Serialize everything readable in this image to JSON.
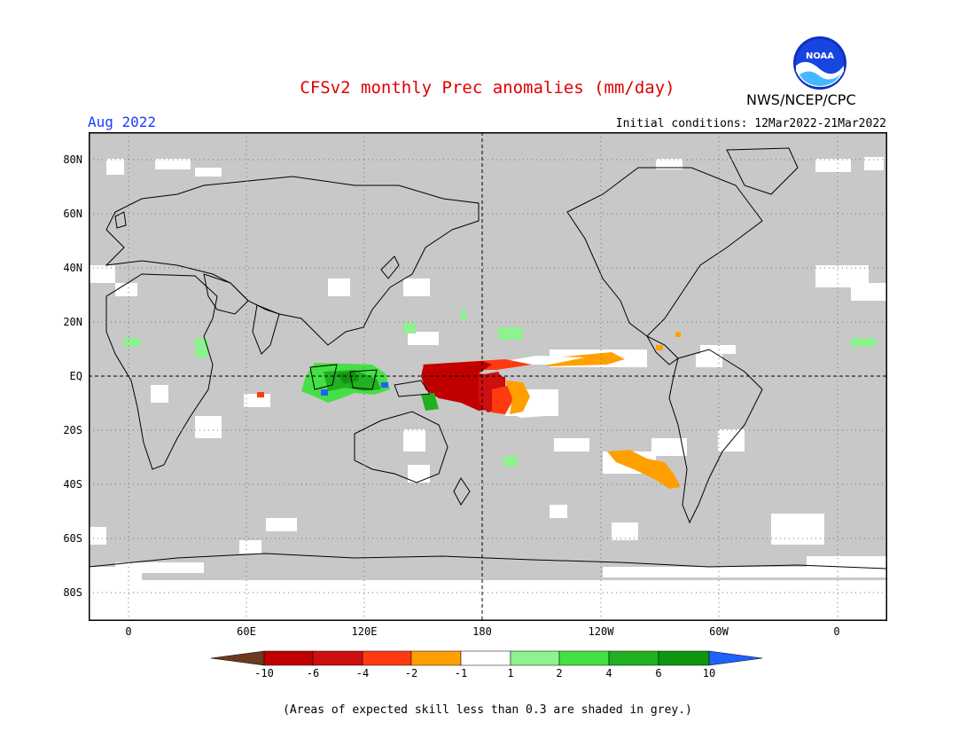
{
  "header": {
    "title": "CFSv2 monthly Prec anomalies (mm/day)",
    "month": "Aug 2022",
    "initial_conditions": "Initial conditions: 12Mar2022-21Mar2022",
    "agency": "NWS/NCEP/CPC",
    "logo_text": "NOAA"
  },
  "map": {
    "lat_labels": [
      "80N",
      "60N",
      "40N",
      "20N",
      "EQ",
      "20S",
      "40S",
      "60S",
      "80S"
    ],
    "lon_labels": [
      "0",
      "60E",
      "120E",
      "180",
      "120W",
      "60W",
      "0"
    ],
    "projection": "cylindrical equidistant",
    "background_color": "#c8c8c8",
    "grid": "dotted"
  },
  "colorbar": {
    "tick_labels": [
      "-10",
      "-6",
      "-4",
      "-2",
      "-1",
      "1",
      "2",
      "4",
      "6",
      "10"
    ],
    "colors": [
      "#6b3a1e",
      "#c00000",
      "#cc1010",
      "#ff3a10",
      "#ffa000",
      "#ffffff",
      "#8ef28e",
      "#45e045",
      "#20b020",
      "#109510",
      "#2060ff"
    ]
  },
  "footnote": "(Areas of expected skill less than 0.3 are shaded in grey.)"
}
